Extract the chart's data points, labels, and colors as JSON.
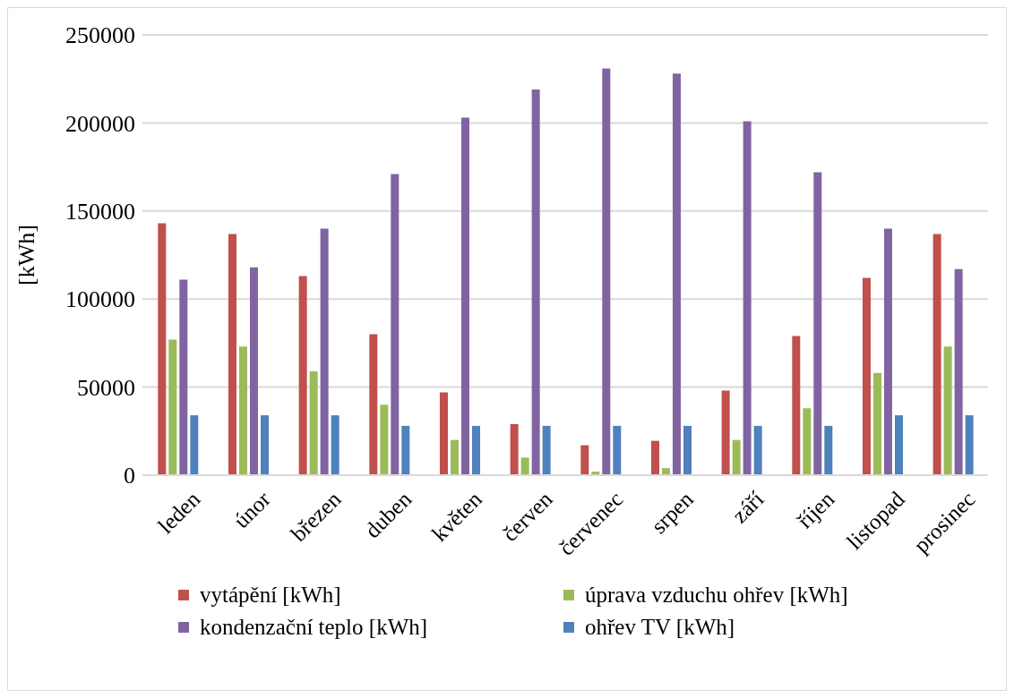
{
  "chart_data": {
    "type": "bar",
    "ylabel": "[kWh]",
    "categories": [
      "leden",
      "únor",
      "březen",
      "duben",
      "květen",
      "červen",
      "červenec",
      "srpen",
      "září",
      "říjen",
      "listopad",
      "prosinec"
    ],
    "series": [
      {
        "name": "vytápění [kWh]",
        "color": "#c0504d",
        "values": [
          143000,
          137000,
          113000,
          80000,
          47000,
          29000,
          17000,
          19500,
          48000,
          79000,
          112000,
          137000
        ]
      },
      {
        "name": "úprava vzduchu ohřev [kWh]",
        "color": "#9bbb59",
        "values": [
          77000,
          73000,
          59000,
          40000,
          20000,
          10000,
          2000,
          4000,
          20000,
          38000,
          58000,
          73000
        ]
      },
      {
        "name": "kondenzační teplo [kWh]",
        "color": "#8064a2",
        "values": [
          111000,
          118000,
          140000,
          171000,
          203000,
          219000,
          231000,
          228000,
          201000,
          172000,
          140000,
          117000
        ]
      },
      {
        "name": "ohřev TV [kWh]",
        "color": "#4f81bd",
        "values": [
          34000,
          34000,
          34000,
          28000,
          28000,
          28000,
          28000,
          28000,
          28000,
          28000,
          34000,
          34000
        ]
      }
    ],
    "ylim": [
      0,
      250000
    ],
    "yticks": [
      0,
      50000,
      100000,
      150000,
      200000,
      250000
    ],
    "grid": "y",
    "legend": "bottom"
  }
}
